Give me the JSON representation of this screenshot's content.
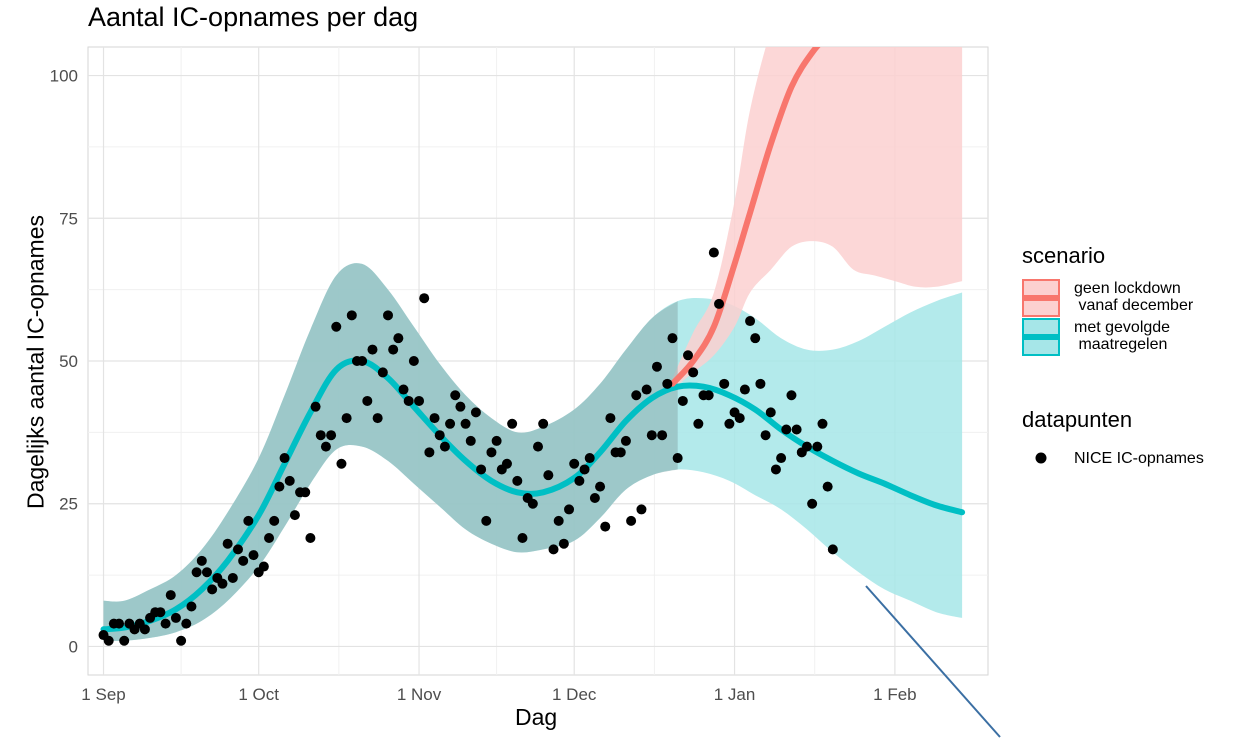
{
  "chart_data": {
    "type": "line",
    "title": "Aantal IC-opnames per dag",
    "xlabel": "Dag",
    "ylabel": "Dagelijks aantal IC-opnames",
    "xlim": [
      "2020-08-29",
      "2021-02-19"
    ],
    "ylim": [
      -5,
      105
    ],
    "x_ticks": [
      {
        "date": "2020-09-01",
        "label": "1 Sep"
      },
      {
        "date": "2020-10-01",
        "label": "1 Oct"
      },
      {
        "date": "2020-11-01",
        "label": "1 Nov"
      },
      {
        "date": "2020-12-01",
        "label": "1 Dec"
      },
      {
        "date": "2021-01-01",
        "label": "1 Jan"
      },
      {
        "date": "2021-02-01",
        "label": "1 Feb"
      }
    ],
    "y_ticks": [
      0,
      25,
      50,
      75,
      100
    ],
    "grid": true,
    "legend_placement": "right",
    "legends": [
      {
        "title": "scenario",
        "entries": [
          {
            "label": "geen lockdown\n vanaf december",
            "line_color": "#f8766d",
            "fill_color": "#fcd0d0"
          },
          {
            "label": "met gevolgde\n maatregelen",
            "line_color": "#00bfc4",
            "fill_color": "#a6e6e8"
          }
        ]
      },
      {
        "title": "datapunten",
        "entries": [
          {
            "label": "NICE IC-opnames",
            "marker": "filled-circle",
            "color": "#000000"
          }
        ]
      }
    ],
    "series": [
      {
        "name": "geen lockdown\n vanaf december",
        "color": "#f8766d",
        "band_color": "#fcd0d0",
        "x": [
          "2020-12-20",
          "2020-12-24",
          "2020-12-28",
          "2021-01-01",
          "2021-01-04",
          "2021-01-08",
          "2021-01-12",
          "2021-01-16",
          "2021-01-20",
          "2021-01-24",
          "2021-01-28",
          "2021-02-01",
          "2021-02-05",
          "2021-02-09",
          "2021-02-14"
        ],
        "y": [
          46,
          50,
          56,
          67,
          76,
          88,
          98,
          104,
          108,
          111,
          113,
          115,
          116,
          117,
          118
        ],
        "lower": [
          45,
          48,
          51,
          56,
          62,
          66,
          70,
          71,
          70,
          66,
          65,
          64,
          63,
          63,
          64
        ],
        "upper": [
          47,
          55,
          62,
          78,
          94,
          108,
          118,
          126,
          130,
          133,
          135,
          136,
          137,
          138,
          140
        ]
      },
      {
        "name": "met gevolgde\n maatregelen",
        "color": "#00bfc4",
        "band_color": "#a6e6e8",
        "x": [
          "2020-09-01",
          "2020-09-05",
          "2020-09-10",
          "2020-09-15",
          "2020-09-20",
          "2020-09-25",
          "2020-10-01",
          "2020-10-06",
          "2020-10-11",
          "2020-10-16",
          "2020-10-21",
          "2020-10-26",
          "2020-10-31",
          "2020-11-05",
          "2020-11-10",
          "2020-11-15",
          "2020-11-20",
          "2020-11-25",
          "2020-12-01",
          "2020-12-06",
          "2020-12-11",
          "2020-12-16",
          "2020-12-21",
          "2020-12-26",
          "2020-12-31",
          "2021-01-05",
          "2021-01-10",
          "2021-01-15",
          "2021-01-20",
          "2021-01-25",
          "2021-01-30",
          "2021-02-04",
          "2021-02-09",
          "2021-02-14"
        ],
        "y": [
          3,
          3.3,
          4.5,
          6.5,
          10,
          15,
          23,
          32,
          41,
          48.5,
          50,
          47,
          42,
          37,
          32.5,
          29,
          27,
          27,
          29.5,
          34,
          39.5,
          43.5,
          45.5,
          45.5,
          44,
          41.5,
          38,
          35,
          32.5,
          30.3,
          28.5,
          26.5,
          24.7,
          23.5
        ],
        "lower": [
          1,
          1,
          1.5,
          2.5,
          4.5,
          8,
          14,
          21,
          28.5,
          34.5,
          35,
          32.5,
          28.5,
          24.5,
          20.5,
          18,
          16.5,
          17,
          18.5,
          22.5,
          27.5,
          30,
          31,
          30.5,
          29,
          26.5,
          24,
          20.5,
          16.5,
          13,
          10,
          8,
          6,
          5
        ],
        "upper": [
          8,
          8,
          10,
          12.5,
          17,
          23.5,
          33,
          44,
          55.5,
          65,
          67,
          62.5,
          56,
          49.5,
          44,
          40,
          37.5,
          38.5,
          41.5,
          46,
          52,
          57.5,
          60.5,
          61,
          60,
          57.5,
          54,
          52,
          52,
          53.5,
          56,
          58.5,
          60.5,
          62
        ]
      },
      {
        "name": "NICE IC-opnames",
        "type": "scatter",
        "color": "#000000",
        "points": [
          [
            "2020-09-01",
            2
          ],
          [
            "2020-09-02",
            1
          ],
          [
            "2020-09-03",
            4
          ],
          [
            "2020-09-04",
            4
          ],
          [
            "2020-09-05",
            1
          ],
          [
            "2020-09-06",
            4
          ],
          [
            "2020-09-07",
            3
          ],
          [
            "2020-09-08",
            4
          ],
          [
            "2020-09-09",
            3
          ],
          [
            "2020-09-10",
            5
          ],
          [
            "2020-09-11",
            6
          ],
          [
            "2020-09-12",
            6
          ],
          [
            "2020-09-13",
            4
          ],
          [
            "2020-09-14",
            9
          ],
          [
            "2020-09-15",
            5
          ],
          [
            "2020-09-16",
            1
          ],
          [
            "2020-09-17",
            4
          ],
          [
            "2020-09-18",
            7
          ],
          [
            "2020-09-19",
            13
          ],
          [
            "2020-09-20",
            15
          ],
          [
            "2020-09-21",
            13
          ],
          [
            "2020-09-22",
            10
          ],
          [
            "2020-09-23",
            12
          ],
          [
            "2020-09-24",
            11
          ],
          [
            "2020-09-25",
            18
          ],
          [
            "2020-09-26",
            12
          ],
          [
            "2020-09-27",
            17
          ],
          [
            "2020-09-28",
            15
          ],
          [
            "2020-09-29",
            22
          ],
          [
            "2020-09-30",
            16
          ],
          [
            "2020-10-01",
            13
          ],
          [
            "2020-10-02",
            14
          ],
          [
            "2020-10-03",
            19
          ],
          [
            "2020-10-04",
            22
          ],
          [
            "2020-10-05",
            28
          ],
          [
            "2020-10-06",
            33
          ],
          [
            "2020-10-07",
            29
          ],
          [
            "2020-10-08",
            23
          ],
          [
            "2020-10-09",
            27
          ],
          [
            "2020-10-10",
            27
          ],
          [
            "2020-10-11",
            19
          ],
          [
            "2020-10-12",
            42
          ],
          [
            "2020-10-13",
            37
          ],
          [
            "2020-10-14",
            35
          ],
          [
            "2020-10-15",
            37
          ],
          [
            "2020-10-16",
            56
          ],
          [
            "2020-10-17",
            32
          ],
          [
            "2020-10-18",
            40
          ],
          [
            "2020-10-19",
            58
          ],
          [
            "2020-10-20",
            50
          ],
          [
            "2020-10-21",
            50
          ],
          [
            "2020-10-22",
            43
          ],
          [
            "2020-10-23",
            52
          ],
          [
            "2020-10-24",
            40
          ],
          [
            "2020-10-25",
            48
          ],
          [
            "2020-10-26",
            58
          ],
          [
            "2020-10-27",
            52
          ],
          [
            "2020-10-28",
            54
          ],
          [
            "2020-10-29",
            45
          ],
          [
            "2020-10-30",
            43
          ],
          [
            "2020-10-31",
            50
          ],
          [
            "2020-11-01",
            43
          ],
          [
            "2020-11-02",
            61
          ],
          [
            "2020-11-03",
            34
          ],
          [
            "2020-11-04",
            40
          ],
          [
            "2020-11-05",
            37
          ],
          [
            "2020-11-06",
            35
          ],
          [
            "2020-11-07",
            39
          ],
          [
            "2020-11-08",
            44
          ],
          [
            "2020-11-09",
            42
          ],
          [
            "2020-11-10",
            39
          ],
          [
            "2020-11-11",
            36
          ],
          [
            "2020-11-12",
            41
          ],
          [
            "2020-11-13",
            31
          ],
          [
            "2020-11-14",
            22
          ],
          [
            "2020-11-15",
            34
          ],
          [
            "2020-11-16",
            36
          ],
          [
            "2020-11-17",
            31
          ],
          [
            "2020-11-18",
            32
          ],
          [
            "2020-11-19",
            39
          ],
          [
            "2020-11-20",
            29
          ],
          [
            "2020-11-21",
            19
          ],
          [
            "2020-11-22",
            26
          ],
          [
            "2020-11-23",
            25
          ],
          [
            "2020-11-24",
            35
          ],
          [
            "2020-11-25",
            39
          ],
          [
            "2020-11-26",
            30
          ],
          [
            "2020-11-27",
            17
          ],
          [
            "2020-11-28",
            22
          ],
          [
            "2020-11-29",
            18
          ],
          [
            "2020-11-30",
            24
          ],
          [
            "2020-12-01",
            32
          ],
          [
            "2020-12-02",
            29
          ],
          [
            "2020-12-03",
            31
          ],
          [
            "2020-12-04",
            33
          ],
          [
            "2020-12-05",
            26
          ],
          [
            "2020-12-06",
            28
          ],
          [
            "2020-12-07",
            21
          ],
          [
            "2020-12-08",
            40
          ],
          [
            "2020-12-09",
            34
          ],
          [
            "2020-12-10",
            34
          ],
          [
            "2020-12-11",
            36
          ],
          [
            "2020-12-12",
            22
          ],
          [
            "2020-12-13",
            44
          ],
          [
            "2020-12-14",
            24
          ],
          [
            "2020-12-15",
            45
          ],
          [
            "2020-12-16",
            37
          ],
          [
            "2020-12-17",
            49
          ],
          [
            "2020-12-18",
            37
          ],
          [
            "2020-12-19",
            46
          ],
          [
            "2020-12-20",
            54
          ],
          [
            "2020-12-21",
            33
          ],
          [
            "2020-12-22",
            43
          ],
          [
            "2020-12-23",
            51
          ],
          [
            "2020-12-24",
            48
          ],
          [
            "2020-12-25",
            39
          ],
          [
            "2020-12-26",
            44
          ],
          [
            "2020-12-27",
            44
          ],
          [
            "2020-12-28",
            69
          ],
          [
            "2020-12-29",
            60
          ],
          [
            "2020-12-30",
            46
          ],
          [
            "2020-12-31",
            39
          ],
          [
            "2021-01-01",
            41
          ],
          [
            "2021-01-02",
            40
          ],
          [
            "2021-01-03",
            45
          ],
          [
            "2021-01-04",
            57
          ],
          [
            "2021-01-05",
            54
          ],
          [
            "2021-01-06",
            46
          ],
          [
            "2021-01-07",
            37
          ],
          [
            "2021-01-08",
            41
          ],
          [
            "2021-01-09",
            31
          ],
          [
            "2021-01-10",
            33
          ],
          [
            "2021-01-11",
            38
          ],
          [
            "2021-01-12",
            44
          ],
          [
            "2021-01-13",
            38
          ],
          [
            "2021-01-14",
            34
          ],
          [
            "2021-01-15",
            35
          ],
          [
            "2021-01-16",
            25
          ],
          [
            "2021-01-17",
            35
          ],
          [
            "2021-01-18",
            39
          ],
          [
            "2021-01-19",
            28
          ],
          [
            "2021-01-20",
            17
          ]
        ]
      }
    ]
  }
}
